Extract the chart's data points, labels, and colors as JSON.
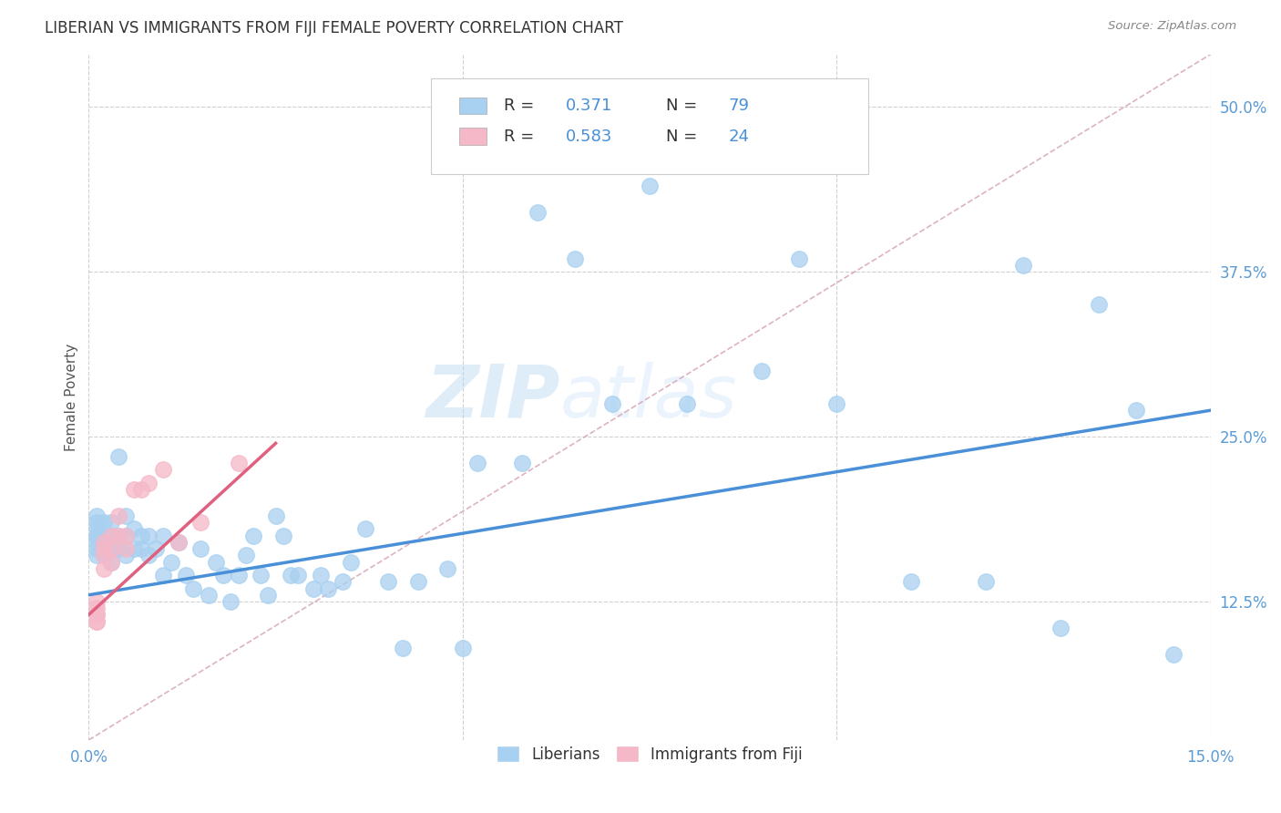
{
  "title": "LIBERIAN VS IMMIGRANTS FROM FIJI FEMALE POVERTY CORRELATION CHART",
  "source": "Source: ZipAtlas.com",
  "ylabel": "Female Poverty",
  "ytick_labels": [
    "12.5%",
    "25.0%",
    "37.5%",
    "50.0%"
  ],
  "ytick_values": [
    0.125,
    0.25,
    0.375,
    0.5
  ],
  "xlim": [
    0.0,
    0.15
  ],
  "ylim": [
    0.02,
    0.54
  ],
  "color_liberian": "#a8d0f0",
  "color_fiji": "#f5b8c8",
  "color_trendline_liberian": "#4a90d9",
  "color_trendline_fiji": "#e06080",
  "color_diagonal": "#d4a0b0",
  "watermark_zip": "ZIP",
  "watermark_atlas": "atlas",
  "background_color": "#ffffff",
  "grid_color": "#d0d0d0",
  "liberian_x": [
    0.001,
    0.001,
    0.001,
    0.001,
    0.001,
    0.001,
    0.001,
    0.001,
    0.002,
    0.002,
    0.002,
    0.002,
    0.002,
    0.003,
    0.003,
    0.003,
    0.003,
    0.004,
    0.004,
    0.004,
    0.004,
    0.005,
    0.005,
    0.005,
    0.006,
    0.006,
    0.007,
    0.007,
    0.008,
    0.008,
    0.009,
    0.01,
    0.01,
    0.011,
    0.012,
    0.013,
    0.014,
    0.015,
    0.016,
    0.017,
    0.018,
    0.019,
    0.02,
    0.021,
    0.022,
    0.023,
    0.024,
    0.025,
    0.026,
    0.027,
    0.028,
    0.03,
    0.031,
    0.032,
    0.034,
    0.035,
    0.037,
    0.04,
    0.042,
    0.044,
    0.048,
    0.05,
    0.052,
    0.058,
    0.06,
    0.065,
    0.07,
    0.075,
    0.08,
    0.09,
    0.095,
    0.1,
    0.11,
    0.12,
    0.125,
    0.13,
    0.135,
    0.14,
    0.145
  ],
  "liberian_y": [
    0.175,
    0.18,
    0.17,
    0.165,
    0.185,
    0.175,
    0.16,
    0.19,
    0.17,
    0.175,
    0.165,
    0.185,
    0.16,
    0.175,
    0.165,
    0.185,
    0.155,
    0.17,
    0.175,
    0.165,
    0.235,
    0.16,
    0.175,
    0.19,
    0.165,
    0.18,
    0.165,
    0.175,
    0.16,
    0.175,
    0.165,
    0.175,
    0.145,
    0.155,
    0.17,
    0.145,
    0.135,
    0.165,
    0.13,
    0.155,
    0.145,
    0.125,
    0.145,
    0.16,
    0.175,
    0.145,
    0.13,
    0.19,
    0.175,
    0.145,
    0.145,
    0.135,
    0.145,
    0.135,
    0.14,
    0.155,
    0.18,
    0.14,
    0.09,
    0.14,
    0.15,
    0.09,
    0.23,
    0.23,
    0.42,
    0.385,
    0.275,
    0.44,
    0.275,
    0.3,
    0.385,
    0.275,
    0.14,
    0.14,
    0.38,
    0.105,
    0.35,
    0.27,
    0.085
  ],
  "fiji_x": [
    0.001,
    0.001,
    0.001,
    0.001,
    0.001,
    0.001,
    0.002,
    0.002,
    0.002,
    0.002,
    0.003,
    0.003,
    0.003,
    0.004,
    0.004,
    0.005,
    0.005,
    0.006,
    0.007,
    0.008,
    0.01,
    0.012,
    0.015,
    0.02
  ],
  "fiji_y": [
    0.115,
    0.12,
    0.11,
    0.125,
    0.115,
    0.11,
    0.165,
    0.17,
    0.15,
    0.16,
    0.165,
    0.175,
    0.155,
    0.175,
    0.19,
    0.175,
    0.165,
    0.21,
    0.21,
    0.215,
    0.225,
    0.17,
    0.185,
    0.23
  ],
  "trendline_lib_x0": 0.0,
  "trendline_lib_y0": 0.13,
  "trendline_lib_x1": 0.15,
  "trendline_lib_y1": 0.27,
  "trendline_fij_x0": 0.0,
  "trendline_fij_y0": 0.115,
  "trendline_fij_x1": 0.025,
  "trendline_fij_y1": 0.245
}
